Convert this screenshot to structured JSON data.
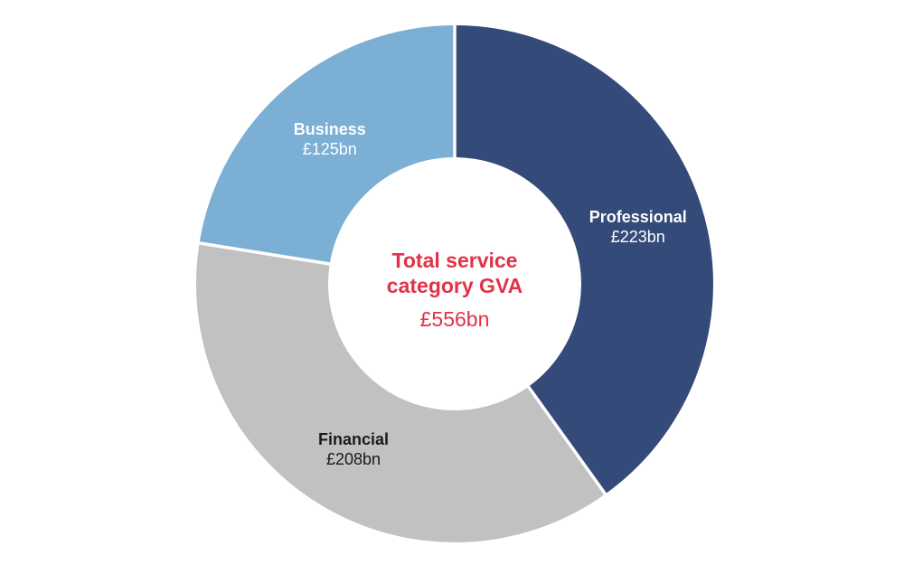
{
  "chart_data": {
    "type": "pie",
    "donut": true,
    "title": "Total service category GVA",
    "direction": "clockwise",
    "start_angle_deg": 0,
    "total_value": 556,
    "unit": "£bn",
    "center_label": {
      "line1": "Total service",
      "line2": "category GVA",
      "total": "£556bn"
    },
    "categories": [
      "Professional",
      "Financial",
      "Business"
    ],
    "values": [
      223,
      208,
      125
    ],
    "segments": [
      {
        "label": "Professional",
        "value": 223,
        "value_label": "£223bn",
        "color": "#344A78",
        "text_color": "#FFFFFF"
      },
      {
        "label": "Financial",
        "value": 208,
        "value_label": "£208bn",
        "color": "#C1C1C1",
        "text_color": "#1A1A1A"
      },
      {
        "label": "Business",
        "value": 125,
        "value_label": "£125bn",
        "color": "#7BAFD4",
        "text_color": "#FFFFFF"
      }
    ],
    "colors": {
      "accent_red": "#E23247",
      "divider": "#FFFFFF",
      "background": "#FFFFFF"
    },
    "legend": "none",
    "grid": false
  }
}
